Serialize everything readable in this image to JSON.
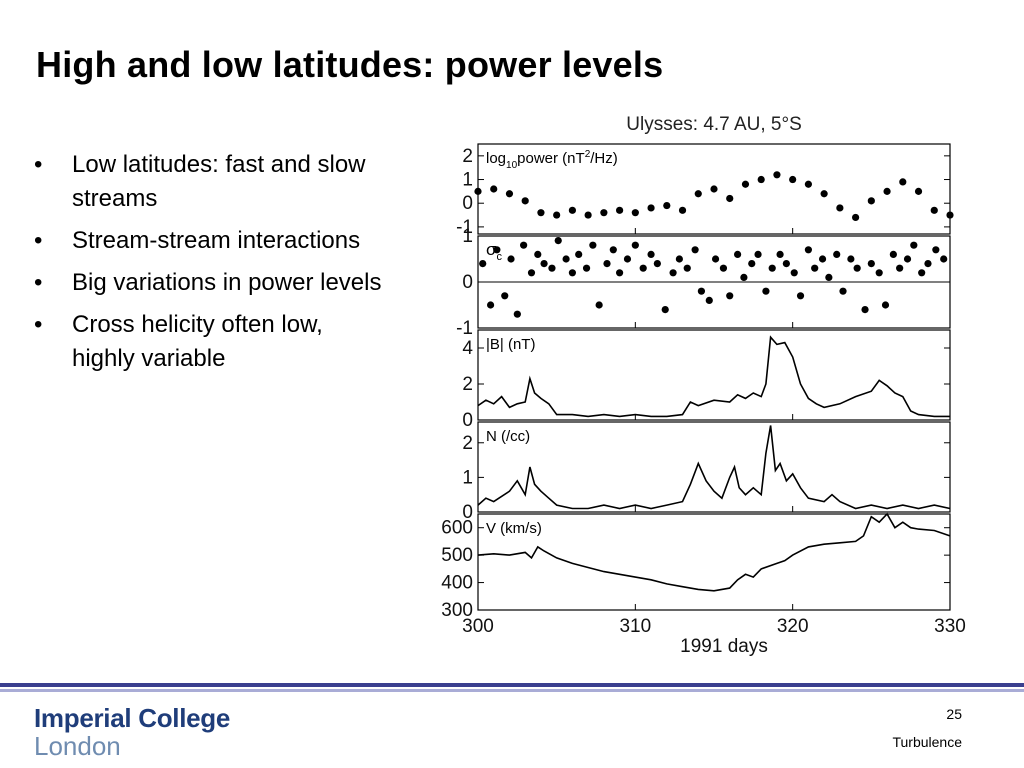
{
  "slide": {
    "title": "High and low latitudes: power levels",
    "bullets": [
      "Low latitudes: fast and slow streams",
      "Stream-stream interactions",
      "Big variations in power levels",
      "Cross helicity often low, highly variable"
    ],
    "bullet_char": "•"
  },
  "footer": {
    "logo_line1": "Imperial College",
    "logo_line2": "London",
    "page_number": "25",
    "topic": "Turbulence",
    "colors": {
      "rule": "#3a3f8f",
      "rule_light": "#a9acd6",
      "logo": "#1f3d7a",
      "logo_light": "#6f8cb0"
    }
  },
  "chart_data": {
    "type": "line",
    "title": "Ulysses: 4.7 AU, 5°S",
    "xlabel": "1991 days",
    "xlim": [
      300,
      330
    ],
    "x_ticks": [
      "300",
      "310",
      "320",
      "330"
    ],
    "panels": [
      {
        "name": "power",
        "label_parts": [
          "log",
          "10",
          "power (nT",
          "2",
          "/Hz)"
        ],
        "style": "scatter",
        "ylim": [
          -1.3,
          2.5
        ],
        "y_ticks": [
          "2",
          "1",
          "0",
          "-1"
        ],
        "y_tick_values": [
          2,
          1,
          0,
          -1
        ],
        "x": [
          300,
          301,
          302,
          303,
          304,
          305,
          306,
          307,
          308,
          309,
          310,
          311,
          312,
          313,
          314,
          315,
          316,
          317,
          318,
          319,
          320,
          321,
          322,
          323,
          324,
          325,
          326,
          327,
          328,
          329,
          330
        ],
        "values": [
          0.5,
          0.6,
          0.4,
          0.1,
          -0.4,
          -0.5,
          -0.3,
          -0.5,
          -0.4,
          -0.3,
          -0.4,
          -0.2,
          -0.1,
          -0.3,
          0.4,
          0.6,
          0.2,
          0.8,
          1.0,
          1.2,
          1.0,
          0.8,
          0.4,
          -0.2,
          -0.6,
          0.1,
          0.5,
          0.9,
          0.5,
          -0.3,
          -0.5
        ]
      },
      {
        "name": "cross-helicity",
        "label_main": "σ",
        "label_sub": "c",
        "style": "scatter",
        "ylim": [
          -1,
          1
        ],
        "y_ticks": [
          "1",
          "0",
          "-1"
        ],
        "y_tick_values": [
          1,
          0,
          -1
        ],
        "zero_line": true,
        "x": [
          300.3,
          300.8,
          301.2,
          301.7,
          302.1,
          302.5,
          302.9,
          303.4,
          303.8,
          304.2,
          304.7,
          305.1,
          305.6,
          306.0,
          306.4,
          306.9,
          307.3,
          307.7,
          308.2,
          308.6,
          309.0,
          309.5,
          310.0,
          310.5,
          311.0,
          311.4,
          311.9,
          312.4,
          312.8,
          313.3,
          313.8,
          314.2,
          314.7,
          315.1,
          315.6,
          316.0,
          316.5,
          316.9,
          317.4,
          317.8,
          318.3,
          318.7,
          319.2,
          319.6,
          320.1,
          320.5,
          321.0,
          321.4,
          321.9,
          322.3,
          322.8,
          323.2,
          323.7,
          324.1,
          324.6,
          325.0,
          325.5,
          325.9,
          326.4,
          326.8,
          327.3,
          327.7,
          328.2,
          328.6,
          329.1,
          329.6
        ],
        "values": [
          0.4,
          -0.5,
          0.7,
          -0.3,
          0.5,
          -0.7,
          0.8,
          0.2,
          0.6,
          0.4,
          0.3,
          0.9,
          0.5,
          0.2,
          0.6,
          0.3,
          0.8,
          -0.5,
          0.4,
          0.7,
          0.2,
          0.5,
          0.8,
          0.3,
          0.6,
          0.4,
          -0.6,
          0.2,
          0.5,
          0.3,
          0.7,
          -0.2,
          -0.4,
          0.5,
          0.3,
          -0.3,
          0.6,
          0.1,
          0.4,
          0.6,
          -0.2,
          0.3,
          0.6,
          0.4,
          0.2,
          -0.3,
          0.7,
          0.3,
          0.5,
          0.1,
          0.6,
          -0.2,
          0.5,
          0.3,
          -0.6,
          0.4,
          0.2,
          -0.5,
          0.6,
          0.3,
          0.5,
          0.8,
          0.2,
          0.4,
          0.7,
          0.5
        ]
      },
      {
        "name": "magnetic-field",
        "label": "|B| (nT)",
        "style": "line",
        "ylim": [
          0,
          5
        ],
        "y_ticks": [
          "4",
          "2",
          "0"
        ],
        "y_tick_values": [
          4,
          2,
          0
        ],
        "x": [
          300,
          300.5,
          301,
          301.5,
          302,
          302.5,
          303,
          303.3,
          303.6,
          304,
          304.5,
          305,
          306,
          307,
          308,
          309,
          310,
          311,
          312,
          313,
          313.5,
          314,
          315,
          316,
          316.5,
          317,
          317.5,
          318,
          318.3,
          318.6,
          319,
          319.5,
          320,
          320.5,
          321,
          321.5,
          322,
          323,
          324,
          325,
          325.5,
          326,
          326.5,
          327,
          327.5,
          328,
          329,
          330
        ],
        "values": [
          0.8,
          1.1,
          0.9,
          1.3,
          0.7,
          0.9,
          1.0,
          2.3,
          1.5,
          1.2,
          0.9,
          0.3,
          0.3,
          0.2,
          0.3,
          0.2,
          0.3,
          0.2,
          0.2,
          0.3,
          1.0,
          0.8,
          1.1,
          1.0,
          1.4,
          1.2,
          1.5,
          1.3,
          2.0,
          4.6,
          4.2,
          4.3,
          3.5,
          2.0,
          1.2,
          0.9,
          0.7,
          0.9,
          1.3,
          1.6,
          2.2,
          1.9,
          1.5,
          1.3,
          0.5,
          0.3,
          0.2,
          0.2
        ]
      },
      {
        "name": "density",
        "label": "N (/cc)",
        "style": "line",
        "ylim": [
          0,
          2.6
        ],
        "y_ticks": [
          "2",
          "1",
          "0"
        ],
        "y_tick_values": [
          2,
          1,
          0
        ],
        "x": [
          300,
          300.5,
          301,
          302,
          302.5,
          303,
          303.3,
          303.6,
          304,
          304.5,
          305,
          306,
          307,
          308,
          309,
          310,
          311,
          312,
          313,
          313.5,
          314,
          314.5,
          315,
          315.5,
          316,
          316.3,
          316.6,
          317,
          317.5,
          318,
          318.3,
          318.6,
          318.9,
          319.2,
          319.6,
          320,
          320.5,
          321,
          322,
          322.5,
          323,
          324,
          325,
          326,
          327,
          328,
          329,
          330
        ],
        "values": [
          0.2,
          0.4,
          0.3,
          0.6,
          0.9,
          0.5,
          1.3,
          0.8,
          0.6,
          0.4,
          0.2,
          0.1,
          0.1,
          0.2,
          0.1,
          0.2,
          0.1,
          0.2,
          0.3,
          0.8,
          1.4,
          0.9,
          0.6,
          0.4,
          1.0,
          1.3,
          0.7,
          0.5,
          0.7,
          0.5,
          1.7,
          2.5,
          1.2,
          1.4,
          0.9,
          1.1,
          0.7,
          0.4,
          0.3,
          0.5,
          0.3,
          0.1,
          0.2,
          0.1,
          0.2,
          0.1,
          0.2,
          0.1
        ]
      },
      {
        "name": "velocity",
        "label": "V (km/s)",
        "style": "line",
        "ylim": [
          300,
          650
        ],
        "y_ticks": [
          "600",
          "500",
          "400",
          "300"
        ],
        "y_tick_values": [
          600,
          500,
          400,
          300
        ],
        "x": [
          300,
          301,
          302,
          303,
          303.4,
          303.8,
          304.2,
          305,
          306,
          307,
          308,
          309,
          310,
          311,
          312,
          313,
          314,
          315,
          316,
          316.5,
          317,
          317.5,
          318,
          319,
          319.5,
          320,
          321,
          322,
          323,
          324,
          324.5,
          325,
          325.5,
          326,
          326.5,
          327,
          327.5,
          328,
          329,
          330
        ],
        "values": [
          500,
          505,
          500,
          510,
          490,
          530,
          515,
          490,
          470,
          455,
          440,
          430,
          420,
          410,
          395,
          385,
          375,
          370,
          380,
          410,
          430,
          420,
          450,
          470,
          480,
          500,
          530,
          540,
          545,
          550,
          570,
          640,
          620,
          650,
          600,
          620,
          600,
          595,
          590,
          570
        ]
      }
    ]
  }
}
